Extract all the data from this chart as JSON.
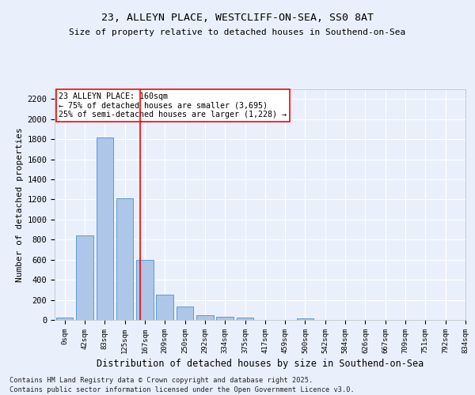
{
  "title1": "23, ALLEYN PLACE, WESTCLIFF-ON-SEA, SS0 8AT",
  "title2": "Size of property relative to detached houses in Southend-on-Sea",
  "xlabel": "Distribution of detached houses by size in Southend-on-Sea",
  "ylabel": "Number of detached properties",
  "annotation_line1": "23 ALLEYN PLACE: 160sqm",
  "annotation_line2": "← 75% of detached houses are smaller (3,695)",
  "annotation_line3": "25% of semi-detached houses are larger (1,228) →",
  "bar_values": [
    25,
    845,
    1820,
    1210,
    595,
    255,
    130,
    45,
    30,
    20,
    0,
    0,
    15,
    0,
    0,
    0,
    0,
    0,
    0,
    0
  ],
  "bin_labels": [
    "0sqm",
    "42sqm",
    "83sqm",
    "125sqm",
    "167sqm",
    "209sqm",
    "250sqm",
    "292sqm",
    "334sqm",
    "375sqm",
    "417sqm",
    "459sqm",
    "500sqm",
    "542sqm",
    "584sqm",
    "626sqm",
    "667sqm",
    "709sqm",
    "751sqm",
    "792sqm",
    "834sqm"
  ],
  "bar_color": "#aec6e8",
  "bar_edge_color": "#5b9bd5",
  "red_line_x": 3.75,
  "ylim": [
    0,
    2300
  ],
  "yticks": [
    0,
    200,
    400,
    600,
    800,
    1000,
    1200,
    1400,
    1600,
    1800,
    2000,
    2200
  ],
  "bg_color": "#eaf0fb",
  "grid_color": "#ffffff",
  "footer1": "Contains HM Land Registry data © Crown copyright and database right 2025.",
  "footer2": "Contains public sector information licensed under the Open Government Licence v3.0."
}
